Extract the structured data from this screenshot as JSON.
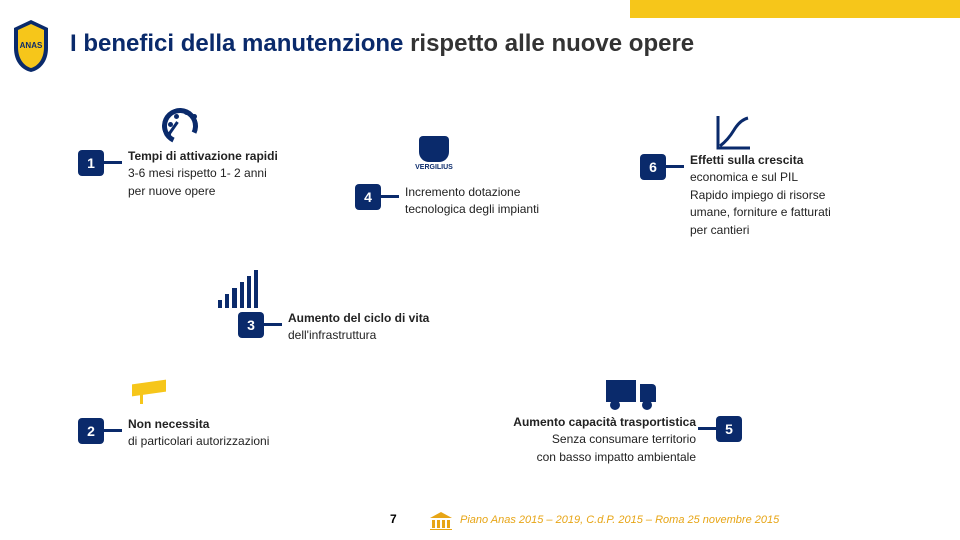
{
  "colors": {
    "navy": "#0a2a6b",
    "gold": "#f6c61a",
    "orange": "#e7a516",
    "text": "#222",
    "title1": "#0a2a6b",
    "title2": "#333"
  },
  "title": {
    "part1": "I benefici della manutenzione",
    "part2": " rispetto alle nuove opere"
  },
  "items": {
    "i1": {
      "num": "1",
      "head": "Tempi di attivazione rapidi",
      "body": "3-6 mesi rispetto 1- 2 anni\nper nuove opere"
    },
    "i2": {
      "num": "2",
      "head": "Non necessita",
      "body": "di particolari autorizzazioni"
    },
    "i3": {
      "num": "3",
      "head": "Aumento del ciclo di vita",
      "body": "dell'infrastruttura"
    },
    "i4": {
      "num": "4",
      "head": "",
      "body": "Incremento dotazione\ntecnologica degli impianti"
    },
    "i5": {
      "num": "5",
      "head": "Aumento capacità trasportistica",
      "body": "Senza consumare territorio\ncon basso impatto ambientale"
    },
    "i6": {
      "num": "6",
      "head": "Effetti sulla crescita",
      "body": "economica e sul PIL\nRapido impiego di risorse\numane, forniture e fatturati\nper cantieri"
    }
  },
  "footer": {
    "page": "7",
    "caption": "Piano Anas 2015 – 2019, C.d.P. 2015 – Roma 25 novembre 2015"
  },
  "gauge": {
    "dots": [
      [
        8,
        28
      ],
      [
        10,
        18
      ],
      [
        16,
        10
      ],
      [
        26,
        6
      ],
      [
        34,
        10
      ]
    ]
  },
  "bars_heights": [
    8,
    14,
    20,
    26,
    32,
    38
  ],
  "vergilius_label": "VERGILIUS"
}
